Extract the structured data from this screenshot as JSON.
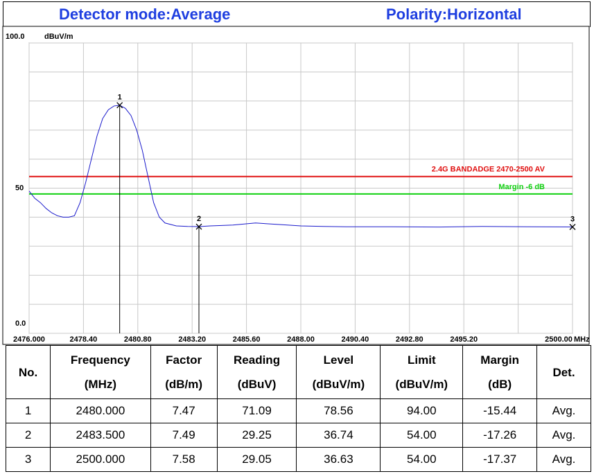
{
  "header": {
    "detector": "Detector mode:Average",
    "polarity": "Polarity:Horizontal"
  },
  "chart_data": {
    "type": "line",
    "y_unit": "dBuV/m",
    "x_unit": "MHz",
    "xlim": [
      2476,
      2500
    ],
    "ylim": [
      0,
      100
    ],
    "yticks": [
      {
        "value": 0,
        "label": "0.0"
      },
      {
        "value": 10,
        "label": null
      },
      {
        "value": 20,
        "label": null
      },
      {
        "value": 30,
        "label": null
      },
      {
        "value": 40,
        "label": null
      },
      {
        "value": 50,
        "label": "50"
      },
      {
        "value": 60,
        "label": null
      },
      {
        "value": 70,
        "label": null
      },
      {
        "value": 80,
        "label": null
      },
      {
        "value": 90,
        "label": null
      },
      {
        "value": 100,
        "label": "100.0"
      }
    ],
    "xticks": [
      {
        "value": 2476,
        "label": "2476.000"
      },
      {
        "value": 2478.4,
        "label": "2478.40"
      },
      {
        "value": 2480.8,
        "label": "2480.80"
      },
      {
        "value": 2483.2,
        "label": "2483.20"
      },
      {
        "value": 2485.6,
        "label": "2485.60"
      },
      {
        "value": 2488,
        "label": "2488.00"
      },
      {
        "value": 2490.4,
        "label": "2490.40"
      },
      {
        "value": 2492.8,
        "label": "2492.80"
      },
      {
        "value": 2495.2,
        "label": "2495.20"
      },
      {
        "value": 2497.6,
        "label": null
      },
      {
        "value": 2500,
        "label": "2500.00"
      }
    ],
    "grid": true,
    "x": [
      2476,
      2476.25,
      2476.5,
      2476.75,
      2477,
      2477.25,
      2477.5,
      2477.75,
      2478,
      2478.25,
      2478.5,
      2478.75,
      2479,
      2479.25,
      2479.5,
      2479.75,
      2480,
      2480.25,
      2480.5,
      2480.75,
      2481,
      2481.25,
      2481.5,
      2481.75,
      2482,
      2482.5,
      2483,
      2483.5,
      2484,
      2485,
      2486,
      2487,
      2488,
      2489,
      2490,
      2492,
      2494,
      2496,
      2498,
      2500
    ],
    "series": [
      {
        "color": "#1a1acc",
        "values": [
          49,
          46.5,
          45,
          43,
          41.5,
          40.5,
          40,
          40,
          40.5,
          45,
          52,
          60,
          68,
          74,
          77,
          78.3,
          78.56,
          77.5,
          75,
          70,
          63,
          54,
          45,
          40,
          38,
          37,
          36.8,
          36.74,
          37,
          37.3,
          38,
          37.5,
          37,
          36.8,
          36.7,
          36.7,
          36.6,
          36.8,
          36.7,
          36.63
        ]
      }
    ],
    "limit_lines": [
      {
        "label": "2.4G BANDADGE 2470-2500 AV",
        "value": 54,
        "color": "#e01010"
      },
      {
        "label": "Margin -6 dB",
        "value": 48,
        "color": "#10d010"
      }
    ],
    "markers": [
      {
        "label": "1",
        "x": 2480,
        "value": 78.56,
        "drop_line": true
      },
      {
        "label": "2",
        "x": 2483.5,
        "value": 36.74,
        "drop_line": true
      },
      {
        "label": "3",
        "x": 2500,
        "value": 36.63,
        "drop_line": false
      }
    ]
  },
  "table": {
    "header": [
      [
        "No."
      ],
      [
        "Frequency",
        "(MHz)"
      ],
      [
        "Factor",
        "(dB/m)"
      ],
      [
        "Reading",
        "(dBuV)"
      ],
      [
        "Level",
        "(dBuV/m)"
      ],
      [
        "Limit",
        "(dBuV/m)"
      ],
      [
        "Margin",
        "(dB)"
      ],
      [
        "Det."
      ]
    ],
    "rows": [
      [
        "1",
        "2480.000",
        "7.47",
        "71.09",
        "78.56",
        "94.00",
        "-15.44",
        "Avg."
      ],
      [
        "2",
        "2483.500",
        "7.49",
        "29.25",
        "36.74",
        "54.00",
        "-17.26",
        "Avg."
      ],
      [
        "3",
        "2500.000",
        "7.58",
        "29.05",
        "36.63",
        "54.00",
        "-17.37",
        "Avg."
      ]
    ]
  }
}
